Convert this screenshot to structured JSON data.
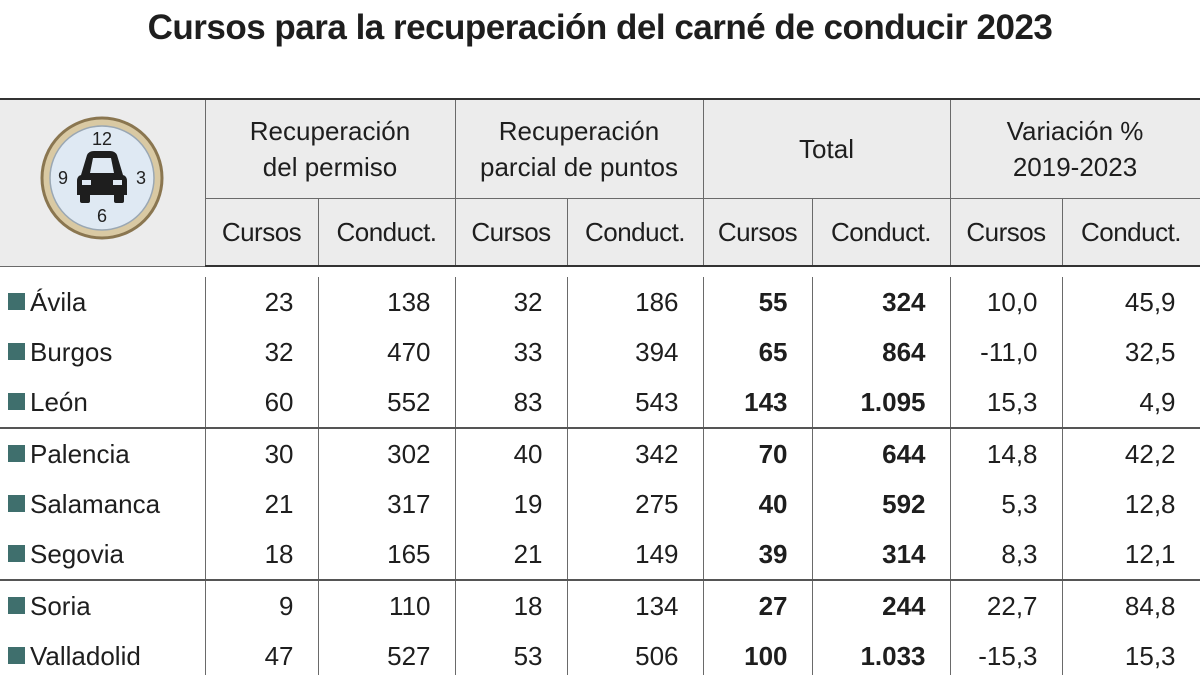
{
  "title": "Cursos para la recuperación del carné de conducir 2023",
  "icon": {
    "hours": [
      "12",
      "3",
      "6",
      "9"
    ]
  },
  "table": {
    "groups": [
      [
        "Recuperación",
        "del permiso"
      ],
      [
        "Recuperación",
        "parcial de puntos"
      ],
      [
        "Total"
      ],
      [
        "Variación %",
        "2019-2023"
      ]
    ],
    "subheaders": [
      "Cursos",
      "Conduct.",
      "Cursos",
      "Conduct.",
      "Cursos",
      "Conduct.",
      "Cursos",
      "Conduct."
    ],
    "rows": [
      {
        "name": "Ávila",
        "cells": [
          "23",
          "138",
          "32",
          "186",
          "55",
          "324",
          "10,0",
          "45,9"
        ]
      },
      {
        "name": "Burgos",
        "cells": [
          "32",
          "470",
          "33",
          "394",
          "65",
          "864",
          "-11,0",
          "32,5"
        ]
      },
      {
        "name": "León",
        "cells": [
          "60",
          "552",
          "83",
          "543",
          "143",
          "1.095",
          "15,3",
          "4,9"
        ]
      },
      {
        "name": "Palencia",
        "cells": [
          "30",
          "302",
          "40",
          "342",
          "70",
          "644",
          "14,8",
          "42,2"
        ]
      },
      {
        "name": "Salamanca",
        "cells": [
          "21",
          "317",
          "19",
          "275",
          "40",
          "592",
          "5,3",
          "12,8"
        ]
      },
      {
        "name": "Segovia",
        "cells": [
          "18",
          "165",
          "21",
          "149",
          "39",
          "314",
          "8,3",
          "12,1"
        ]
      },
      {
        "name": "Soria",
        "cells": [
          "9",
          "110",
          "18",
          "134",
          "27",
          "244",
          "22,7",
          "84,8"
        ]
      },
      {
        "name": "Valladolid",
        "cells": [
          "47",
          "527",
          "53",
          "506",
          "100",
          "1.033",
          "-15,3",
          "15,3"
        ]
      }
    ]
  }
}
